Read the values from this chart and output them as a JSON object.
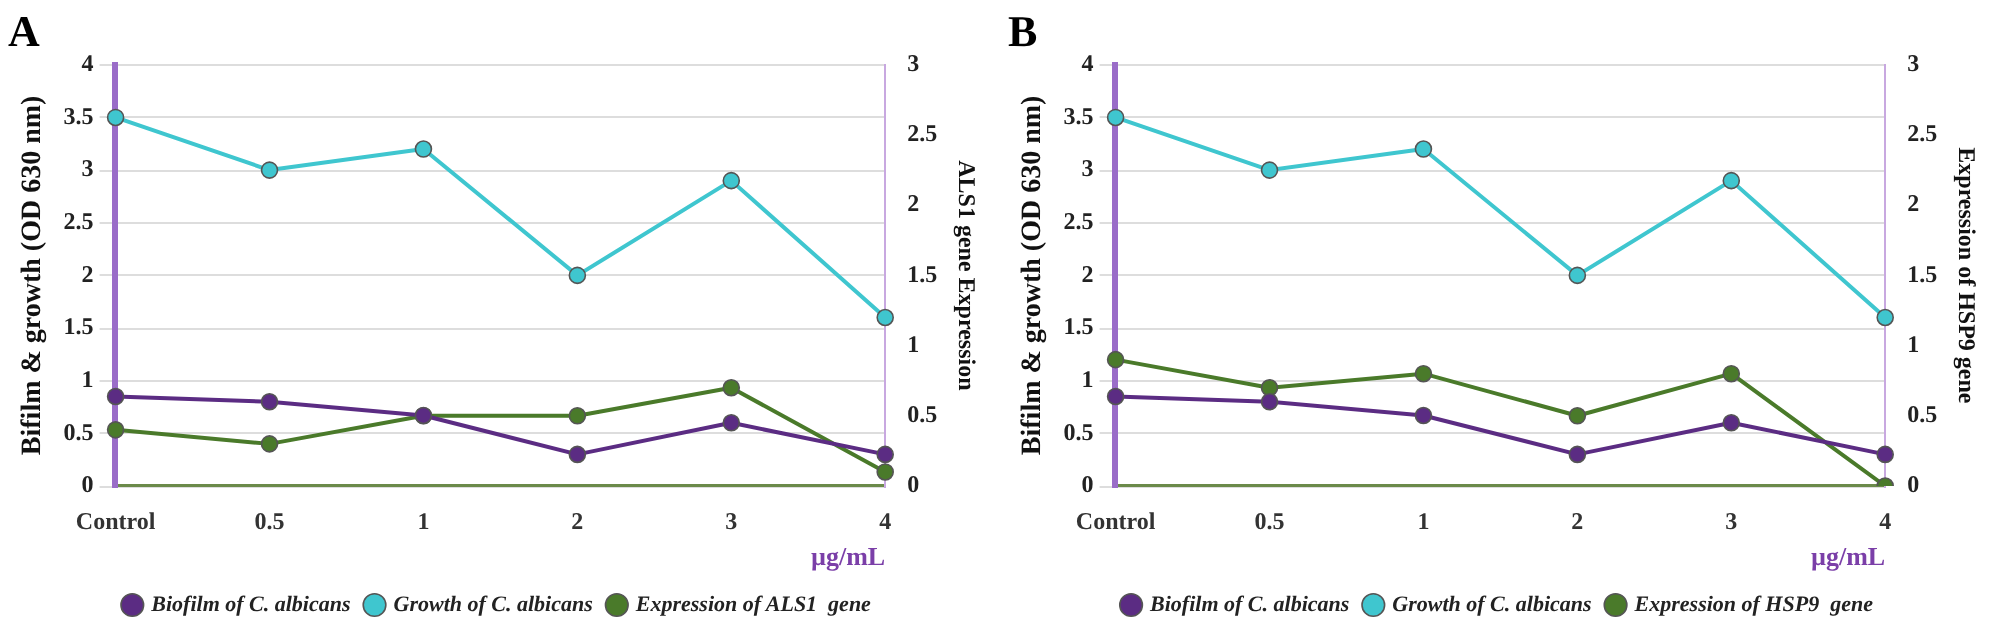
{
  "chart_data": [
    {
      "type": "line",
      "title": "A",
      "xlabel": "µg/mL",
      "ylabel": "Bifilm & growth (OD 630 nm)",
      "y2label": "ALS1 gene Expression",
      "categories": [
        "Control",
        "0.5",
        "1",
        "2",
        "3",
        "4"
      ],
      "series": [
        {
          "name": "Biofilm of C. albicans",
          "color": "#5b2c83",
          "values": [
            0.85,
            0.8,
            0.67,
            0.3,
            0.6,
            0.3
          ]
        },
        {
          "name": "Growth of C. albicans",
          "color": "#3fc6cf",
          "values": [
            3.5,
            3.0,
            3.2,
            2.0,
            2.9,
            1.6
          ]
        },
        {
          "name": "Expression of ALS1  gene",
          "color": "#4a7a2a",
          "axis": "y2",
          "values": [
            0.4,
            0.3,
            0.5,
            0.5,
            0.7,
            0.1
          ]
        }
      ],
      "ylim": [
        0,
        4
      ],
      "yticks": [
        0,
        0.5,
        1,
        1.5,
        2,
        2.5,
        3,
        3.5,
        4
      ],
      "y2lim": [
        0,
        3
      ],
      "y2ticks": [
        0,
        0.5,
        1,
        1.5,
        2,
        2.5,
        3
      ],
      "grid": "y",
      "legend": "bottom",
      "marker": "circle",
      "line_style": "solid"
    },
    {
      "type": "line",
      "title": "B",
      "xlabel": "µg/mL",
      "ylabel": "Bifilm & growth (OD 630 nm)",
      "y2label": "Expression of HSP9 gene",
      "categories": [
        "Control",
        "0.5",
        "1",
        "2",
        "3",
        "4"
      ],
      "series": [
        {
          "name": "Biofilm of C. albicans",
          "color": "#5b2c83",
          "values": [
            0.85,
            0.8,
            0.67,
            0.3,
            0.6,
            0.3
          ]
        },
        {
          "name": "Growth of C. albicans",
          "color": "#3fc6cf",
          "values": [
            3.5,
            3.0,
            3.2,
            2.0,
            2.9,
            1.6
          ]
        },
        {
          "name": "Expression of HSP9  gene",
          "color": "#4a7a2a",
          "axis": "y2",
          "values": [
            0.9,
            0.7,
            0.8,
            0.5,
            0.8,
            0
          ]
        }
      ],
      "ylim": [
        0,
        4
      ],
      "yticks": [
        0,
        0.5,
        1,
        1.5,
        2,
        2.5,
        3,
        3.5,
        4
      ],
      "y2lim": [
        0,
        3
      ],
      "y2ticks": [
        0,
        0.5,
        1,
        1.5,
        2,
        2.5,
        3
      ],
      "grid": "y",
      "legend": "bottom",
      "marker": "circle",
      "line_style": "solid"
    }
  ]
}
